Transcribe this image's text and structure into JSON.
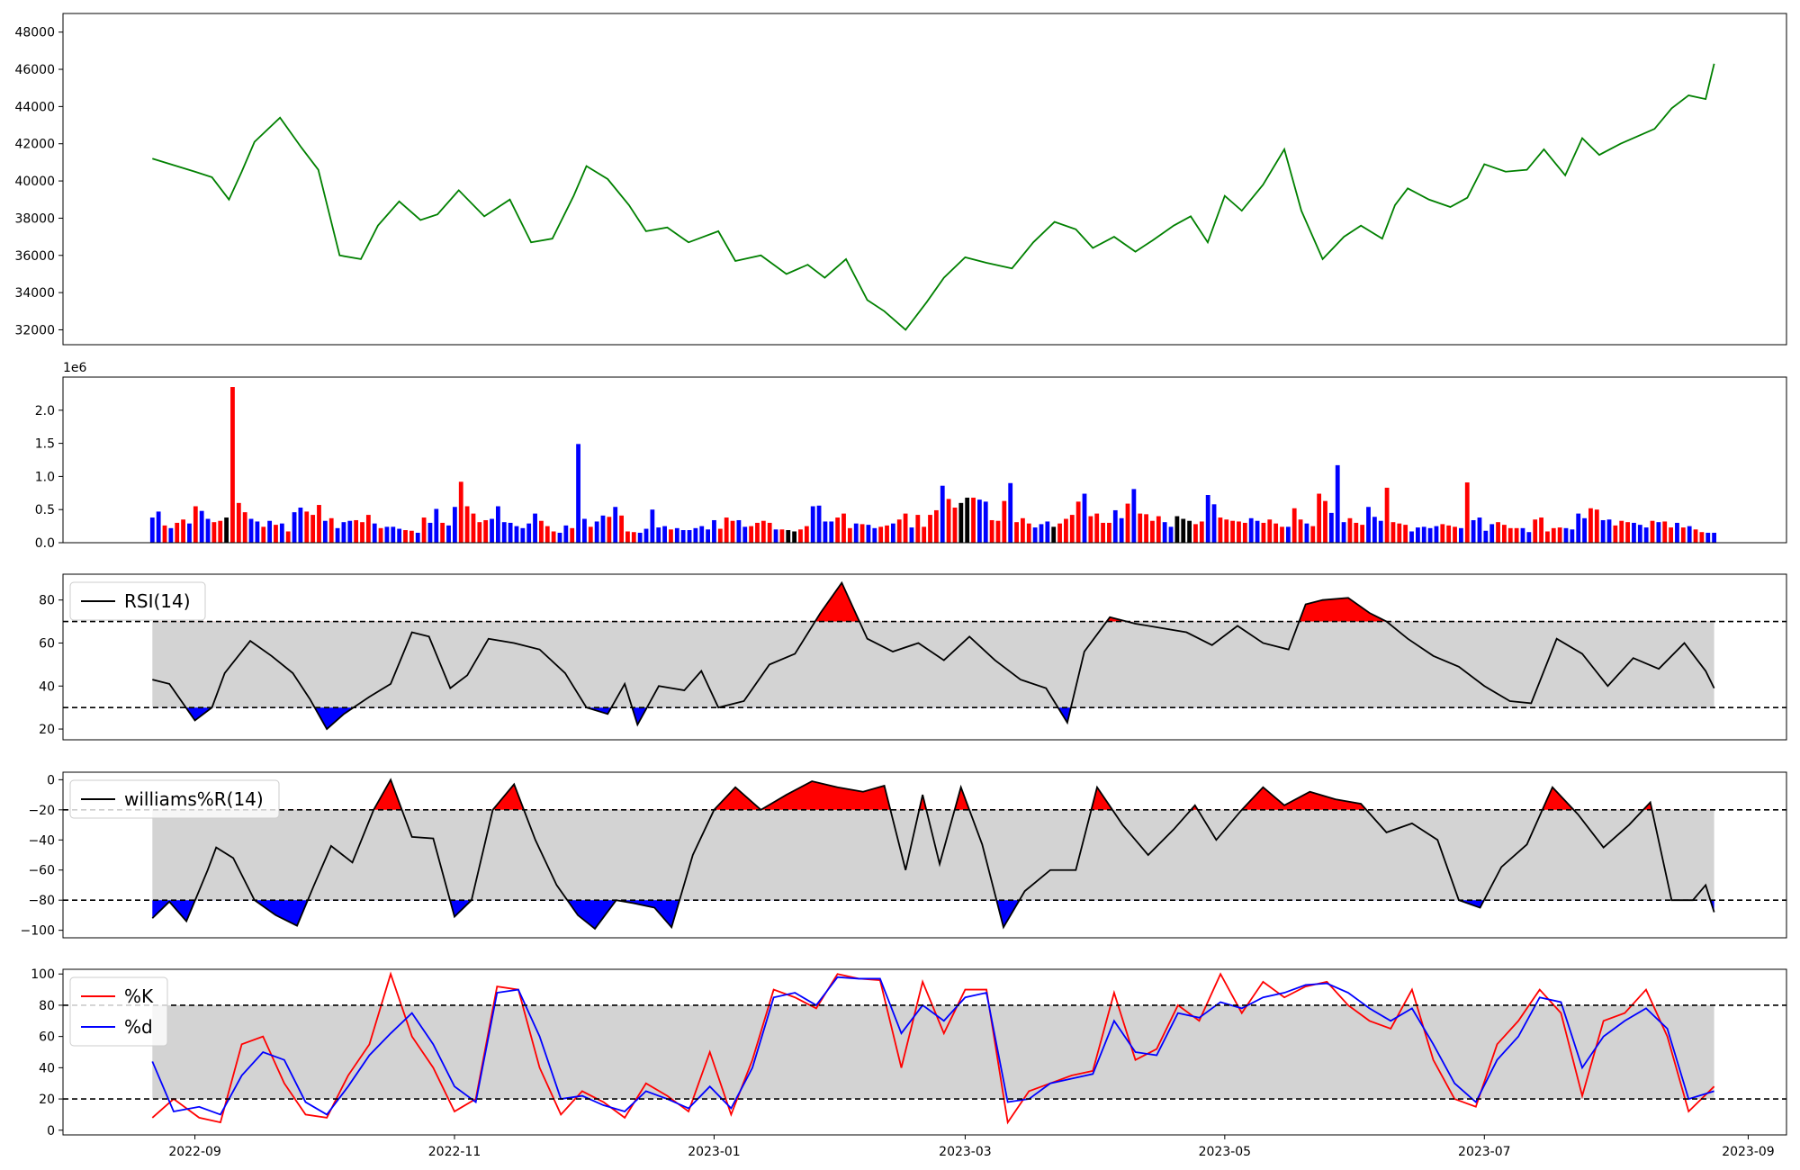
{
  "figure": {
    "x_ticks": [
      "2022-09",
      "2022-11",
      "2023-01",
      "2023-03",
      "2023-05",
      "2023-07",
      "2023-09"
    ],
    "date_range": [
      "2022-08-22",
      "2023-08-24"
    ]
  },
  "chart_data": [
    {
      "type": "line",
      "panel": "price",
      "color": "#008000",
      "ylim": [
        31200,
        49000
      ],
      "y_ticks": [
        "32000",
        "34000",
        "36000",
        "38000",
        "40000",
        "42000",
        "44000",
        "46000",
        "48000"
      ],
      "x": [
        "2022-08-22",
        "2022-09-01",
        "2022-09-05",
        "2022-09-09",
        "2022-09-12",
        "2022-09-15",
        "2022-09-21",
        "2022-09-26",
        "2022-09-30",
        "2022-10-05",
        "2022-10-10",
        "2022-10-14",
        "2022-10-19",
        "2022-10-24",
        "2022-10-28",
        "2022-11-02",
        "2022-11-08",
        "2022-11-14",
        "2022-11-19",
        "2022-11-24",
        "2022-11-29",
        "2022-12-02",
        "2022-12-07",
        "2022-12-12",
        "2022-12-16",
        "2022-12-21",
        "2022-12-26",
        "2023-01-02",
        "2023-01-06",
        "2023-01-12",
        "2023-01-18",
        "2023-01-23",
        "2023-01-27",
        "2023-02-01",
        "2023-02-06",
        "2023-02-10",
        "2023-02-15",
        "2023-02-20",
        "2023-02-24",
        "2023-03-01",
        "2023-03-06",
        "2023-03-12",
        "2023-03-17",
        "2023-03-22",
        "2023-03-27",
        "2023-03-31",
        "2023-04-05",
        "2023-04-10",
        "2023-04-14",
        "2023-04-19",
        "2023-04-23",
        "2023-04-27",
        "2023-05-01",
        "2023-05-05",
        "2023-05-10",
        "2023-05-15",
        "2023-05-19",
        "2023-05-24",
        "2023-05-29",
        "2023-06-02",
        "2023-06-07",
        "2023-06-10",
        "2023-06-13",
        "2023-06-18",
        "2023-06-23",
        "2023-06-27",
        "2023-07-01",
        "2023-07-06",
        "2023-07-11",
        "2023-07-15",
        "2023-07-20",
        "2023-07-24",
        "2023-07-28",
        "2023-08-02",
        "2023-08-06",
        "2023-08-10",
        "2023-08-14",
        "2023-08-18",
        "2023-08-22",
        "2023-08-24"
      ],
      "values": [
        41200,
        40500,
        40200,
        39000,
        40500,
        42100,
        43400,
        41800,
        40600,
        36000,
        35800,
        37600,
        38900,
        37900,
        38200,
        39500,
        38100,
        39000,
        36700,
        36900,
        39200,
        40800,
        40100,
        38700,
        37300,
        37500,
        36700,
        37300,
        35700,
        36000,
        35000,
        35500,
        34800,
        35800,
        33600,
        33000,
        32000,
        33500,
        34800,
        35900,
        35600,
        35300,
        36700,
        37800,
        37400,
        36400,
        37000,
        36200,
        36800,
        37600,
        38100,
        36700,
        39200,
        38400,
        39800,
        41700,
        38400,
        35800,
        37000,
        37600,
        36900,
        38700,
        39600,
        39000,
        38600,
        39100,
        40900,
        40500,
        40600,
        41700,
        40300,
        42300,
        41400,
        42000,
        42400,
        42800,
        43900,
        44600,
        44400,
        46300
      ],
      "note": "values are the approximate visible closing price path"
    },
    {
      "type": "bar",
      "panel": "volume",
      "scale_label": "1e6",
      "ylim": [
        0,
        2.5
      ],
      "y_ticks": [
        "0.0",
        "0.5",
        "1.0",
        "1.5",
        "2.0"
      ],
      "colors": {
        "up": "#ff0000",
        "down": "#0000ff",
        "flat": "#000000"
      },
      "values": [
        0.38,
        0.47,
        0.26,
        0.22,
        0.3,
        0.35,
        0.29,
        0.55,
        0.48,
        0.36,
        0.31,
        0.33,
        0.38,
        2.35,
        0.6,
        0.46,
        0.36,
        0.32,
        0.24,
        0.33,
        0.27,
        0.29,
        0.17,
        0.46,
        0.53,
        0.47,
        0.42,
        0.57,
        0.33,
        0.37,
        0.22,
        0.31,
        0.33,
        0.34,
        0.31,
        0.42,
        0.29,
        0.22,
        0.24,
        0.24,
        0.21,
        0.19,
        0.18,
        0.15,
        0.38,
        0.3,
        0.51,
        0.3,
        0.26,
        0.54,
        0.92,
        0.55,
        0.44,
        0.31,
        0.34,
        0.36,
        0.55,
        0.31,
        0.3,
        0.25,
        0.22,
        0.29,
        0.44,
        0.33,
        0.25,
        0.17,
        0.15,
        0.26,
        0.22,
        1.49,
        0.36,
        0.24,
        0.32,
        0.41,
        0.39,
        0.54,
        0.41,
        0.17,
        0.16,
        0.15,
        0.21,
        0.5,
        0.23,
        0.25,
        0.2,
        0.22,
        0.19,
        0.19,
        0.22,
        0.25,
        0.2,
        0.34,
        0.21,
        0.38,
        0.33,
        0.34,
        0.24,
        0.25,
        0.3,
        0.33,
        0.3,
        0.2,
        0.2,
        0.19,
        0.17,
        0.2,
        0.25,
        0.55,
        0.56,
        0.32,
        0.32,
        0.38,
        0.44,
        0.22,
        0.29,
        0.28,
        0.27,
        0.22,
        0.24,
        0.26,
        0.29,
        0.35,
        0.44,
        0.23,
        0.42,
        0.24,
        0.42,
        0.49,
        0.86,
        0.66,
        0.53,
        0.6,
        0.68,
        0.68,
        0.65,
        0.62,
        0.34,
        0.33,
        0.63,
        0.9,
        0.31,
        0.37,
        0.29,
        0.23,
        0.28,
        0.32,
        0.24,
        0.29,
        0.36,
        0.42,
        0.62,
        0.74,
        0.4,
        0.44,
        0.3,
        0.3,
        0.49,
        0.37,
        0.59,
        0.81,
        0.44,
        0.43,
        0.33,
        0.4,
        0.31,
        0.24,
        0.4,
        0.36,
        0.33,
        0.28,
        0.32,
        0.72,
        0.58,
        0.38,
        0.35,
        0.33,
        0.32,
        0.3,
        0.37,
        0.33,
        0.3,
        0.35,
        0.29,
        0.24,
        0.24,
        0.52,
        0.35,
        0.29,
        0.25,
        0.74,
        0.63,
        0.45,
        1.17,
        0.31,
        0.37,
        0.3,
        0.27,
        0.54,
        0.39,
        0.33,
        0.83,
        0.31,
        0.29,
        0.27,
        0.17,
        0.23,
        0.24,
        0.22,
        0.25,
        0.28,
        0.26,
        0.24,
        0.22,
        0.91,
        0.34,
        0.38,
        0.18,
        0.28,
        0.31,
        0.27,
        0.22,
        0.22,
        0.22,
        0.16,
        0.35,
        0.38,
        0.17,
        0.22,
        0.23,
        0.22,
        0.2,
        0.44,
        0.37,
        0.52,
        0.5,
        0.34,
        0.35,
        0.26,
        0.33,
        0.31,
        0.3,
        0.27,
        0.23,
        0.33,
        0.31,
        0.32,
        0.23,
        0.3,
        0.23,
        0.25,
        0.2,
        0.16,
        0.15,
        0.15
      ],
      "directions": "bbrbrrbrbbrrkrrrbbrbrbrbbrrrbrbbbrrrbrbbbrrbrbbrbbrrrrrbbbbbbbbrrrbbrbbrbbrbrrrbbbbbrbbbbbbbrrrbbrrrrbrkkrrbbbbrrrbrbbrrbrrbrrrrbrrkkrbbrrrbrrrbbbkrrrrbrrrrbbrbrrrrbbkkkrrbbrrrrrbbrrrrbrrbrrrbbbrrrbbbrrrrbbbbbrrrbrbbbbrrrrbbrrrrrbbbbrrbbrrrbbbrbrrbrbrrbbbbrrrbbrbrrrbb"
    },
    {
      "type": "line",
      "panel": "rsi",
      "legend": [
        "RSI(14)"
      ],
      "ylim": [
        15,
        92
      ],
      "y_ticks": [
        "20",
        "40",
        "60",
        "80"
      ],
      "band": [
        30,
        70
      ],
      "colors": {
        "line": "#000000",
        "above": "#ff0000",
        "below": "#0000ff",
        "band": "#d3d3d3"
      },
      "x": [
        "2022-08-22",
        "2022-08-26",
        "2022-09-01",
        "2022-09-05",
        "2022-09-08",
        "2022-09-14",
        "2022-09-19",
        "2022-09-24",
        "2022-09-28",
        "2022-10-02",
        "2022-10-06",
        "2022-10-12",
        "2022-10-17",
        "2022-10-22",
        "2022-10-26",
        "2022-10-31",
        "2022-11-04",
        "2022-11-09",
        "2022-11-15",
        "2022-11-21",
        "2022-11-27",
        "2022-12-02",
        "2022-12-07",
        "2022-12-11",
        "2022-12-14",
        "2022-12-19",
        "2022-12-25",
        "2022-12-29",
        "2023-01-02",
        "2023-01-08",
        "2023-01-14",
        "2023-01-20",
        "2023-01-26",
        "2023-01-31",
        "2023-02-06",
        "2023-02-12",
        "2023-02-18",
        "2023-02-24",
        "2023-03-02",
        "2023-03-08",
        "2023-03-14",
        "2023-03-20",
        "2023-03-25",
        "2023-03-29",
        "2023-04-04",
        "2023-04-10",
        "2023-04-16",
        "2023-04-22",
        "2023-04-28",
        "2023-05-04",
        "2023-05-10",
        "2023-05-16",
        "2023-05-20",
        "2023-05-24",
        "2023-05-30",
        "2023-06-04",
        "2023-06-08",
        "2023-06-13",
        "2023-06-19",
        "2023-06-25",
        "2023-07-01",
        "2023-07-07",
        "2023-07-12",
        "2023-07-18",
        "2023-07-24",
        "2023-07-30",
        "2023-08-05",
        "2023-08-11",
        "2023-08-17",
        "2023-08-22",
        "2023-08-24"
      ],
      "values": [
        43,
        41,
        24,
        30,
        46,
        61,
        54,
        46,
        34,
        20,
        27,
        35,
        41,
        65,
        63,
        39,
        45,
        62,
        60,
        57,
        46,
        30,
        27,
        41,
        22,
        40,
        38,
        47,
        30,
        33,
        50,
        55,
        74,
        88,
        62,
        56,
        60,
        52,
        63,
        52,
        43,
        39,
        23,
        56,
        72,
        69,
        67,
        65,
        59,
        68,
        60,
        57,
        78,
        80,
        81,
        74,
        70,
        62,
        54,
        49,
        40,
        33,
        32,
        62,
        55,
        40,
        53,
        48,
        60,
        47,
        39
      ]
    },
    {
      "type": "line",
      "panel": "williams",
      "legend": [
        "williams%R(14)"
      ],
      "ylim": [
        -105,
        5
      ],
      "y_ticks": [
        "−100",
        "−80",
        "−60",
        "−40",
        "−20",
        "0"
      ],
      "band": [
        -80,
        -20
      ],
      "colors": {
        "line": "#000000",
        "above": "#ff0000",
        "below": "#0000ff",
        "band": "#d3d3d3"
      },
      "x": [
        "2022-08-22",
        "2022-08-26",
        "2022-08-30",
        "2022-09-04",
        "2022-09-06",
        "2022-09-10",
        "2022-09-15",
        "2022-09-20",
        "2022-09-25",
        "2022-09-29",
        "2022-10-03",
        "2022-10-08",
        "2022-10-13",
        "2022-10-17",
        "2022-10-22",
        "2022-10-27",
        "2022-11-01",
        "2022-11-05",
        "2022-11-10",
        "2022-11-15",
        "2022-11-20",
        "2022-11-25",
        "2022-11-30",
        "2022-12-04",
        "2022-12-09",
        "2022-12-13",
        "2022-12-18",
        "2022-12-22",
        "2022-12-27",
        "2023-01-01",
        "2023-01-06",
        "2023-01-12",
        "2023-01-18",
        "2023-01-24",
        "2023-01-30",
        "2023-02-05",
        "2023-02-10",
        "2023-02-15",
        "2023-02-19",
        "2023-02-23",
        "2023-02-28",
        "2023-03-05",
        "2023-03-10",
        "2023-03-15",
        "2023-03-21",
        "2023-03-27",
        "2023-04-01",
        "2023-04-07",
        "2023-04-13",
        "2023-04-19",
        "2023-04-24",
        "2023-04-29",
        "2023-05-05",
        "2023-05-10",
        "2023-05-15",
        "2023-05-21",
        "2023-05-27",
        "2023-06-02",
        "2023-06-08",
        "2023-06-14",
        "2023-06-20",
        "2023-06-25",
        "2023-06-30",
        "2023-07-05",
        "2023-07-11",
        "2023-07-17",
        "2023-07-23",
        "2023-07-29",
        "2023-08-04",
        "2023-08-09",
        "2023-08-14",
        "2023-08-19",
        "2023-08-22",
        "2023-08-24"
      ],
      "values": [
        -92,
        -81,
        -94,
        -60,
        -45,
        -52,
        -80,
        -90,
        -97,
        -70,
        -44,
        -55,
        -20,
        0,
        -38,
        -39,
        -91,
        -80,
        -20,
        -3,
        -40,
        -70,
        -90,
        -99,
        -80,
        -82,
        -85,
        -98,
        -50,
        -20,
        -5,
        -20,
        -10,
        -1,
        -5,
        -8,
        -4,
        -60,
        -10,
        -56,
        -5,
        -43,
        -98,
        -74,
        -60,
        -60,
        -5,
        -30,
        -50,
        -33,
        -17,
        -40,
        -20,
        -5,
        -17,
        -8,
        -13,
        -16,
        -35,
        -29,
        -40,
        -80,
        -85,
        -58,
        -43,
        -5,
        -23,
        -45,
        -30,
        -15,
        -80,
        -80,
        -70,
        -88
      ]
    },
    {
      "type": "line",
      "panel": "stochastic",
      "legend": [
        "%K",
        "%d"
      ],
      "ylim": [
        -3,
        103
      ],
      "y_ticks": [
        "0",
        "20",
        "40",
        "60",
        "80",
        "100"
      ],
      "band": [
        20,
        80
      ],
      "colors": {
        "k": "#ff0000",
        "d": "#0000ff",
        "band": "#d3d3d3"
      },
      "x": [
        "2022-08-22",
        "2022-08-27",
        "2022-09-02",
        "2022-09-07",
        "2022-09-12",
        "2022-09-17",
        "2022-09-22",
        "2022-09-27",
        "2022-10-02",
        "2022-10-07",
        "2022-10-12",
        "2022-10-17",
        "2022-10-22",
        "2022-10-27",
        "2022-11-01",
        "2022-11-06",
        "2022-11-11",
        "2022-11-16",
        "2022-11-21",
        "2022-11-26",
        "2022-12-01",
        "2022-12-06",
        "2022-12-11",
        "2022-12-16",
        "2022-12-21",
        "2022-12-26",
        "2022-12-31",
        "2023-01-05",
        "2023-01-10",
        "2023-01-15",
        "2023-01-20",
        "2023-01-25",
        "2023-01-30",
        "2023-02-04",
        "2023-02-09",
        "2023-02-14",
        "2023-02-19",
        "2023-02-24",
        "2023-03-01",
        "2023-03-06",
        "2023-03-11",
        "2023-03-16",
        "2023-03-21",
        "2023-03-26",
        "2023-03-31",
        "2023-04-05",
        "2023-04-10",
        "2023-04-15",
        "2023-04-20",
        "2023-04-25",
        "2023-04-30",
        "2023-05-05",
        "2023-05-10",
        "2023-05-15",
        "2023-05-20",
        "2023-05-25",
        "2023-05-30",
        "2023-06-04",
        "2023-06-09",
        "2023-06-14",
        "2023-06-19",
        "2023-06-24",
        "2023-06-29",
        "2023-07-04",
        "2023-07-09",
        "2023-07-14",
        "2023-07-19",
        "2023-07-24",
        "2023-07-29",
        "2023-08-03",
        "2023-08-08",
        "2023-08-13",
        "2023-08-18",
        "2023-08-24"
      ],
      "k": [
        8,
        20,
        8,
        5,
        55,
        60,
        30,
        10,
        8,
        35,
        55,
        100,
        60,
        40,
        12,
        20,
        92,
        90,
        40,
        10,
        25,
        18,
        8,
        30,
        22,
        12,
        50,
        10,
        45,
        90,
        85,
        78,
        100,
        97,
        96,
        40,
        95,
        62,
        90,
        90,
        5,
        25,
        30,
        35,
        38,
        88,
        45,
        52,
        80,
        70,
        100,
        75,
        95,
        85,
        92,
        95,
        80,
        70,
        65,
        90,
        45,
        20,
        15,
        55,
        70,
        90,
        75,
        22,
        70,
        75,
        90,
        60,
        12,
        28
      ],
      "d": [
        44,
        12,
        15,
        10,
        35,
        50,
        45,
        18,
        10,
        28,
        48,
        62,
        75,
        55,
        28,
        18,
        88,
        90,
        60,
        20,
        22,
        16,
        12,
        25,
        20,
        14,
        28,
        14,
        40,
        85,
        88,
        80,
        98,
        97,
        97,
        62,
        80,
        70,
        85,
        88,
        18,
        20,
        30,
        33,
        36,
        70,
        50,
        48,
        75,
        72,
        82,
        78,
        85,
        88,
        93,
        94,
        88,
        78,
        70,
        78,
        55,
        30,
        18,
        45,
        60,
        85,
        82,
        40,
        60,
        70,
        78,
        65,
        20,
        25
      ]
    }
  ]
}
